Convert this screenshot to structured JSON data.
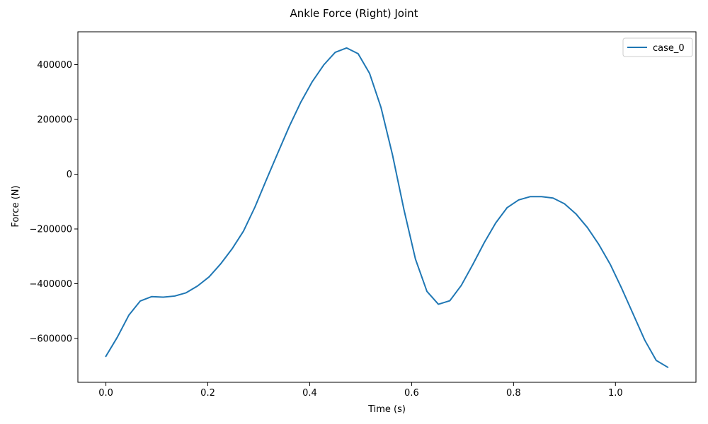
{
  "chart_data": {
    "type": "line",
    "title": "Ankle Force (Right) Joint",
    "xlabel": "Time (s)",
    "ylabel": "Force (N)",
    "xlim": [
      -0.055,
      1.158
    ],
    "ylim": [
      -760000,
      520000
    ],
    "xticks": [
      0.0,
      0.2,
      0.4,
      0.6,
      0.8,
      1.0
    ],
    "xtick_labels": [
      "0.0",
      "0.2",
      "0.4",
      "0.6",
      "0.8",
      "1.0"
    ],
    "yticks": [
      -600000,
      -400000,
      -200000,
      0,
      200000,
      400000
    ],
    "ytick_labels": [
      "−600000",
      "−400000",
      "−200000",
      "0",
      "200000",
      "400000"
    ],
    "grid": false,
    "legend_position": "top-right",
    "series": [
      {
        "name": "case_0",
        "color": "#1f77b4",
        "x": [
          0.0,
          0.0225,
          0.045,
          0.0675,
          0.09,
          0.1125,
          0.135,
          0.1575,
          0.18,
          0.2025,
          0.225,
          0.2475,
          0.27,
          0.2925,
          0.315,
          0.3375,
          0.36,
          0.3825,
          0.405,
          0.4275,
          0.45,
          0.4725,
          0.495,
          0.5175,
          0.54,
          0.5625,
          0.585,
          0.6075,
          0.63,
          0.6525,
          0.675,
          0.6975,
          0.72,
          0.7425,
          0.765,
          0.7875,
          0.81,
          0.8325,
          0.855,
          0.8775,
          0.9,
          0.9225,
          0.945,
          0.9675,
          0.99,
          1.0125,
          1.035,
          1.0575,
          1.08,
          1.1025
        ],
        "y": [
          -665000,
          -595000,
          -515000,
          -463000,
          -447000,
          -449000,
          -445000,
          -433000,
          -408000,
          -375000,
          -328000,
          -273000,
          -208000,
          -120000,
          -20000,
          78000,
          175000,
          263000,
          338000,
          399000,
          445000,
          461000,
          440000,
          368000,
          243000,
          70000,
          -130000,
          -310000,
          -428000,
          -475000,
          -462000,
          -406000,
          -330000,
          -250000,
          -178000,
          -122000,
          -94000,
          -82000,
          -82000,
          -87000,
          -108000,
          -145000,
          -195000,
          -257000,
          -330000,
          -418000,
          -512000,
          -606000,
          -680000,
          -705000
        ]
      }
    ]
  }
}
